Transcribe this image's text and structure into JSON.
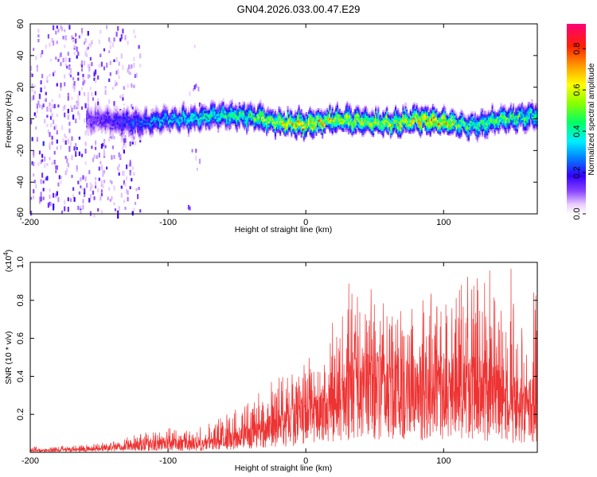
{
  "title": "GN04.2026.033.00.47.E29",
  "chart_data": [
    {
      "type": "heatmap",
      "name": "spectrogram",
      "xlabel": "Height of straight line (km)",
      "ylabel": "Frequency (Hz)",
      "xlim": [
        -200,
        168
      ],
      "ylim": [
        -60,
        60
      ],
      "xticks": [
        -200,
        -100,
        0,
        100
      ],
      "yticks": [
        -60,
        -40,
        -20,
        0,
        20,
        40,
        60
      ],
      "colorbar": {
        "label": "Normalized spectral amplitude",
        "range": [
          0.0,
          0.92
        ],
        "ticks": [
          0.0,
          0.2,
          0.4,
          0.6,
          0.8
        ]
      },
      "description_series": {
        "x": [
          -200,
          -150,
          -120,
          -100,
          -80,
          -60,
          -40,
          -20,
          0,
          20,
          40,
          60,
          80,
          100,
          120,
          140,
          165
        ],
        "center_freq_hz": [
          0,
          0,
          -2,
          0,
          1,
          3,
          2,
          -2,
          -3,
          0,
          -1,
          -2,
          0,
          -1,
          -4,
          0,
          3
        ],
        "peak_amplitude": [
          0.12,
          0.18,
          0.3,
          0.4,
          0.45,
          0.5,
          0.55,
          0.7,
          0.8,
          0.72,
          0.65,
          0.7,
          0.78,
          0.82,
          0.5,
          0.6,
          0.5
        ]
      }
    },
    {
      "type": "line",
      "name": "snr",
      "xlabel": "Height of straight line (km)",
      "ylabel": "SNR (10 * v/v)",
      "scale_label": "(x10^4)",
      "scale_base": "(x10",
      "scale_exp": "4",
      "scale_close": ")",
      "xlim": [
        -200,
        168
      ],
      "ylim": [
        0,
        1.0
      ],
      "xticks": [
        -200,
        -100,
        0,
        100
      ],
      "yticks": [
        0.2,
        0.4,
        0.6,
        0.8,
        1.0
      ],
      "ytick_labels": [
        "0.2",
        "0.4",
        "0.6",
        "0.8",
        "1.0"
      ],
      "color": "#ee3333",
      "envelope": {
        "x": [
          -200,
          -160,
          -140,
          -120,
          -100,
          -80,
          -60,
          -40,
          -20,
          0,
          10,
          20,
          30,
          40,
          60,
          80,
          100,
          120,
          140,
          150,
          165
        ],
        "max": [
          0.03,
          0.04,
          0.06,
          0.1,
          0.14,
          0.14,
          0.2,
          0.28,
          0.4,
          0.5,
          0.55,
          0.7,
          0.95,
          0.85,
          0.92,
          0.8,
          0.9,
          0.95,
          0.98,
          1.0,
          0.85
        ],
        "typical": [
          0.01,
          0.02,
          0.03,
          0.05,
          0.06,
          0.05,
          0.08,
          0.12,
          0.18,
          0.25,
          0.28,
          0.33,
          0.4,
          0.42,
          0.43,
          0.4,
          0.42,
          0.43,
          0.38,
          0.32,
          0.3
        ]
      }
    }
  ]
}
